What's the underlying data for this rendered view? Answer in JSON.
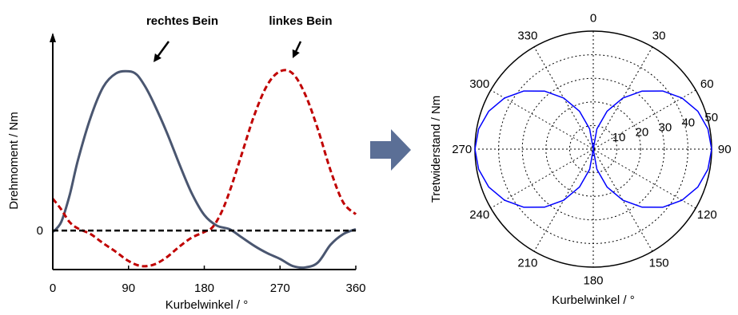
{
  "chart_data": [
    {
      "type": "line",
      "xlabel": "Kurbelwinkel / °",
      "ylabel": "Drehmoment / Nm",
      "x_ticks": [
        "0",
        "90",
        "180",
        "270",
        "360"
      ],
      "y_ticks": [
        "0"
      ],
      "xlim": [
        0,
        360
      ],
      "ylim": [
        -0.55,
        2.75
      ],
      "annotations": [
        "rechtes Bein",
        "linkes Bein"
      ],
      "colors": {
        "right": "#4a5670",
        "left": "#c00000",
        "zero": "#000000"
      },
      "series": [
        {
          "x": [
            0,
            10,
            20,
            30,
            45,
            60,
            75,
            90,
            100,
            110,
            120,
            135,
            150,
            165,
            180,
            195,
            210,
            225,
            240,
            255,
            270,
            285,
            300,
            315,
            330,
            345,
            360
          ],
          "values": [
            -0.02,
            0.12,
            0.5,
            1.0,
            1.6,
            2.03,
            2.22,
            2.25,
            2.2,
            2.03,
            1.8,
            1.4,
            0.95,
            0.53,
            0.22,
            0.07,
            0.02,
            -0.1,
            -0.22,
            -0.32,
            -0.4,
            -0.5,
            -0.52,
            -0.45,
            -0.2,
            -0.05,
            0.02
          ]
        },
        {
          "x": [
            0,
            10,
            20,
            30,
            45,
            60,
            75,
            90,
            105,
            120,
            135,
            150,
            165,
            180,
            190,
            200,
            210,
            225,
            240,
            255,
            270,
            285,
            300,
            315,
            330,
            345,
            360
          ],
          "values": [
            0.45,
            0.3,
            0.12,
            0.03,
            -0.05,
            -0.18,
            -0.3,
            -0.43,
            -0.5,
            -0.48,
            -0.38,
            -0.23,
            -0.1,
            -0.02,
            0.05,
            0.25,
            0.55,
            1.1,
            1.65,
            2.06,
            2.25,
            2.22,
            1.92,
            1.43,
            0.85,
            0.4,
            0.23
          ]
        }
      ]
    },
    {
      "type": "line",
      "subtype": "polar",
      "xlabel": "Kurbelwinkel / °",
      "ylabel": "Tretwiderstand / Nm",
      "angle_ticks": [
        "0",
        "30",
        "60",
        "90",
        "120",
        "150",
        "180",
        "210",
        "240",
        "270",
        "300",
        "330"
      ],
      "radial_ticks": [
        "10",
        "20",
        "30",
        "40",
        "50"
      ],
      "rlim": [
        0,
        50
      ],
      "colors": {
        "curve": "#0000ff",
        "grid": "#000000",
        "ylabel": "#0000ff"
      },
      "series": [
        {
          "theta": [
            0,
            10,
            20,
            30,
            40,
            50,
            60,
            70,
            80,
            90,
            100,
            110,
            120,
            130,
            140,
            150,
            160,
            170,
            180,
            190,
            200,
            210,
            220,
            230,
            240,
            250,
            260,
            270,
            280,
            290,
            300,
            310,
            320,
            330,
            340,
            350,
            360
          ],
          "r": [
            0,
            8.68,
            17.1,
            25.0,
            32.1,
            38.3,
            43.3,
            47.0,
            49.2,
            50,
            49.2,
            47.0,
            43.3,
            38.3,
            32.1,
            25.0,
            17.1,
            8.68,
            0,
            8.68,
            17.1,
            25.0,
            32.1,
            38.3,
            43.3,
            47.0,
            49.2,
            50,
            49.2,
            47.0,
            43.3,
            38.3,
            32.1,
            25.0,
            17.1,
            8.68,
            0
          ]
        }
      ]
    },
    {
      "type": "diagram",
      "arrow_color": "#5b6f96"
    }
  ]
}
